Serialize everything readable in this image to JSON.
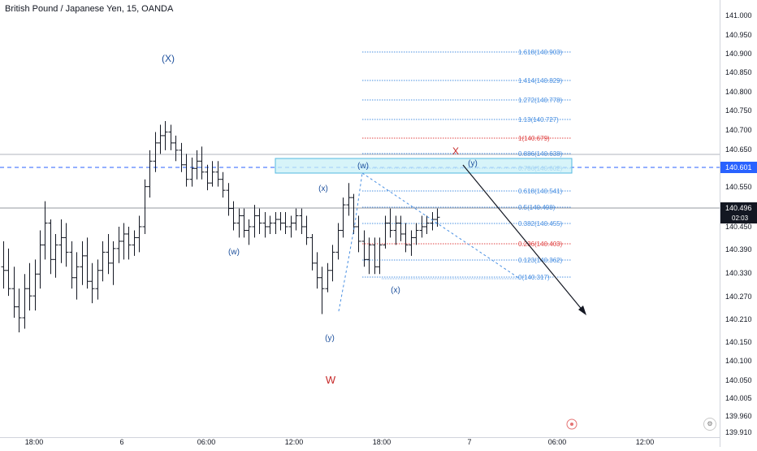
{
  "symbol": {
    "title": "British Pound / Japanese Yen, 15, OANDA"
  },
  "colors": {
    "bar": "#131722",
    "fib_blue": "#4a90e2",
    "fib_red": "#e04545",
    "wave_blue": "#1c4f9c",
    "wave_red": "#c62828",
    "zone_fill": "#c9f0f7",
    "zone_border": "#53b8e0",
    "price_tag": "#2962ff"
  },
  "icons": {
    "alert": "target-icon",
    "indicators": "settings-icon"
  },
  "chart_data": {
    "type": "ohlc",
    "ylim": [
      139.91,
      141.05
    ],
    "y_ticks": [
      "141.000",
      "140.950",
      "140.900",
      "140.850",
      "140.800",
      "140.750",
      "140.700",
      "140.650",
      "140.601",
      "140.550",
      "140.496",
      "140.450",
      "140.390",
      "140.330",
      "140.270",
      "140.210",
      "140.150",
      "140.100",
      "140.050",
      "140.005",
      "139.960",
      "139.910"
    ],
    "x_ticks": [
      "18:00",
      "6",
      "06:00",
      "12:00",
      "18:00",
      "7",
      "06:00",
      "12:00"
    ],
    "price_tags": {
      "dashed": {
        "value": "140.601"
      },
      "last": {
        "value": "140.496",
        "countdown": "02:03"
      }
    },
    "fib_levels": [
      {
        "label": "1.618(140.903)",
        "value": 140.903,
        "color": "blue"
      },
      {
        "label": "1.414(140.829)",
        "value": 140.829,
        "color": "blue"
      },
      {
        "label": "1.272(140.778)",
        "value": 140.778,
        "color": "blue"
      },
      {
        "label": "1.13(140.727)",
        "value": 140.727,
        "color": "blue"
      },
      {
        "label": "1(140.679)",
        "value": 140.679,
        "color": "red"
      },
      {
        "label": "0.886(140.638)",
        "value": 140.638,
        "color": "blue"
      },
      {
        "label": "0.786(140.602)",
        "value": 140.602,
        "color": "blue"
      },
      {
        "label": "0.618(140.541)",
        "value": 140.541,
        "color": "blue"
      },
      {
        "label": "0.5(140.498)",
        "value": 140.498,
        "color": "blue"
      },
      {
        "label": "0.382(140.455)",
        "value": 140.455,
        "color": "blue"
      },
      {
        "label": "0.236(140.403)",
        "value": 140.403,
        "color": "red"
      },
      {
        "label": "0.123(140.362)",
        "value": 140.362,
        "color": "blue"
      },
      {
        "label": "0(140.317)",
        "value": 140.317,
        "color": "blue"
      }
    ],
    "wave_labels": [
      {
        "text": "(X)",
        "color": "blue"
      },
      {
        "text": "(w)",
        "color": "blue"
      },
      {
        "text": "(x)",
        "color": "blue"
      },
      {
        "text": "(y)",
        "color": "blue"
      },
      {
        "text": "W",
        "color": "red"
      },
      {
        "text": "(w)",
        "color": "blue"
      },
      {
        "text": "(x)",
        "color": "blue"
      },
      {
        "text": "(y)",
        "color": "blue"
      },
      {
        "text": "X",
        "color": "red"
      }
    ],
    "bars": [
      [
        140.36,
        140.43,
        140.3,
        140.35
      ],
      [
        140.35,
        140.41,
        140.28,
        140.3
      ],
      [
        140.3,
        140.36,
        140.22,
        140.25
      ],
      [
        140.25,
        140.3,
        140.18,
        140.22
      ],
      [
        140.22,
        140.34,
        140.19,
        140.3
      ],
      [
        140.3,
        140.37,
        140.24,
        140.28
      ],
      [
        140.28,
        140.38,
        140.24,
        140.34
      ],
      [
        140.34,
        140.46,
        140.3,
        140.42
      ],
      [
        140.42,
        140.54,
        140.38,
        140.48
      ],
      [
        140.48,
        140.49,
        140.34,
        140.38
      ],
      [
        140.38,
        140.45,
        140.33,
        140.42
      ],
      [
        140.42,
        140.49,
        140.37,
        140.44
      ],
      [
        140.44,
        140.48,
        140.36,
        140.4
      ],
      [
        140.4,
        140.43,
        140.3,
        140.33
      ],
      [
        140.33,
        140.4,
        140.27,
        140.36
      ],
      [
        140.36,
        140.43,
        140.31,
        140.39
      ],
      [
        140.39,
        140.44,
        140.3,
        140.32
      ],
      [
        140.32,
        140.37,
        140.26,
        140.3
      ],
      [
        140.3,
        140.38,
        140.27,
        140.35
      ],
      [
        140.35,
        140.43,
        140.32,
        140.4
      ],
      [
        140.4,
        140.45,
        140.34,
        140.37
      ],
      [
        140.37,
        140.43,
        140.31,
        140.41
      ],
      [
        140.41,
        140.47,
        140.37,
        140.43
      ],
      [
        140.43,
        140.48,
        140.38,
        140.45
      ],
      [
        140.45,
        140.47,
        140.38,
        140.42
      ],
      [
        140.42,
        140.46,
        140.39,
        140.44
      ],
      [
        140.44,
        140.5,
        140.4,
        140.47
      ],
      [
        140.47,
        140.6,
        140.45,
        140.58
      ],
      [
        140.58,
        140.68,
        140.55,
        140.65
      ],
      [
        140.65,
        140.73,
        140.62,
        140.7
      ],
      [
        140.7,
        140.75,
        140.67,
        140.72
      ],
      [
        140.72,
        140.76,
        140.68,
        140.73
      ],
      [
        140.73,
        140.75,
        140.68,
        140.7
      ],
      [
        140.7,
        140.72,
        140.65,
        140.68
      ],
      [
        140.68,
        140.7,
        140.62,
        140.64
      ],
      [
        140.64,
        140.67,
        140.58,
        140.6
      ],
      [
        140.6,
        140.66,
        140.58,
        140.63
      ],
      [
        140.63,
        140.68,
        140.6,
        140.65
      ],
      [
        140.65,
        140.69,
        140.6,
        140.62
      ],
      [
        140.62,
        140.64,
        140.57,
        140.59
      ],
      [
        140.59,
        140.65,
        140.58,
        140.62
      ],
      [
        140.62,
        140.65,
        140.58,
        140.6
      ],
      [
        140.6,
        140.62,
        140.55,
        140.57
      ],
      [
        140.57,
        140.59,
        140.5,
        140.52
      ],
      [
        140.52,
        140.54,
        140.46,
        140.48
      ],
      [
        140.48,
        140.52,
        140.44,
        140.5
      ],
      [
        140.5,
        140.52,
        140.44,
        140.46
      ],
      [
        140.46,
        140.49,
        140.42,
        140.47
      ],
      [
        140.47,
        140.53,
        140.44,
        140.5
      ],
      [
        140.5,
        140.52,
        140.45,
        140.48
      ],
      [
        140.48,
        140.51,
        140.44,
        140.47
      ],
      [
        140.47,
        140.5,
        140.45,
        140.48
      ],
      [
        140.48,
        140.51,
        140.45,
        140.49
      ],
      [
        140.49,
        140.51,
        140.46,
        140.48
      ],
      [
        140.48,
        140.51,
        140.45,
        140.47
      ],
      [
        140.47,
        140.5,
        140.44,
        140.48
      ],
      [
        140.48,
        140.52,
        140.46,
        140.5
      ],
      [
        140.5,
        140.52,
        140.45,
        140.47
      ],
      [
        140.47,
        140.5,
        140.42,
        140.44
      ],
      [
        140.44,
        140.45,
        140.35,
        140.37
      ],
      [
        140.37,
        140.4,
        140.3,
        140.33
      ],
      [
        140.33,
        140.36,
        140.23,
        140.3
      ],
      [
        140.3,
        140.37,
        140.29,
        140.35
      ],
      [
        140.35,
        140.42,
        140.32,
        140.4
      ],
      [
        140.4,
        140.48,
        140.38,
        140.46
      ],
      [
        140.46,
        140.55,
        140.44,
        140.53
      ],
      [
        140.53,
        140.59,
        140.5,
        140.55
      ],
      [
        140.55,
        140.56,
        140.45,
        140.47
      ],
      [
        140.47,
        140.5,
        140.4,
        140.43
      ],
      [
        140.43,
        140.46,
        140.36,
        140.38
      ],
      [
        140.38,
        140.44,
        140.34,
        140.42
      ],
      [
        140.42,
        140.44,
        140.34,
        140.36
      ],
      [
        140.36,
        140.44,
        140.34,
        140.42
      ],
      [
        140.42,
        140.5,
        140.41,
        140.48
      ],
      [
        140.48,
        140.52,
        140.44,
        140.46
      ],
      [
        140.46,
        140.5,
        140.42,
        140.48
      ],
      [
        140.48,
        140.5,
        140.43,
        140.45
      ],
      [
        140.45,
        140.48,
        140.4,
        140.42
      ],
      [
        140.42,
        140.46,
        140.39,
        140.44
      ],
      [
        140.44,
        140.48,
        140.42,
        140.46
      ],
      [
        140.46,
        140.5,
        140.44,
        140.47
      ],
      [
        140.47,
        140.5,
        140.45,
        140.48
      ],
      [
        140.48,
        140.51,
        140.46,
        140.49
      ],
      [
        140.49,
        140.52,
        140.47,
        140.496
      ]
    ]
  }
}
